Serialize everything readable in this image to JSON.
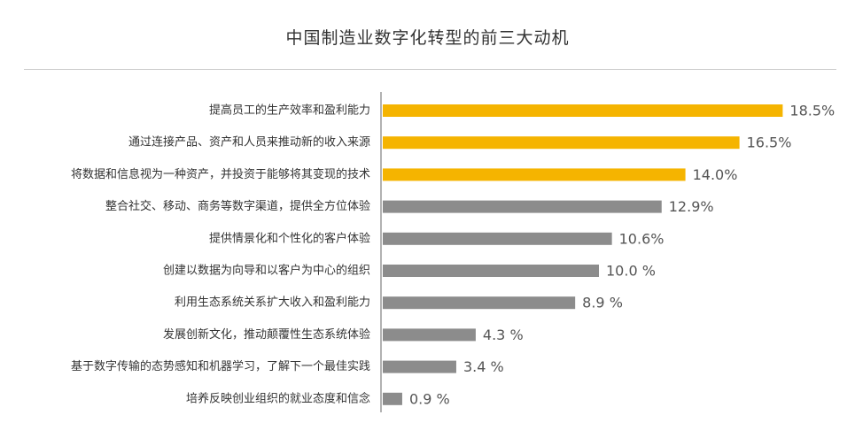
{
  "chart_data": {
    "type": "bar",
    "orientation": "horizontal",
    "title": "中国制造业数字化转型的前三大动机",
    "xlabel": "",
    "ylabel": "",
    "xlim": [
      0,
      20
    ],
    "grid": false,
    "legend": "none",
    "colors": {
      "highlight": "#F5B400",
      "default": "#8C8C8C",
      "axis": "#999999"
    },
    "categories": [
      "提高员工的生产效率和盈利能力",
      "通过连接产品、资产和人员来推动新的收入来源",
      "将数据和信息视为一种资产，并投资于能够将其变现的技术",
      "整合社交、移动、商务等数字渠道，提供全方位体验",
      "提供情景化和个性化的客户体验",
      "创建以数据为向导和以客户为中心的组织",
      "利用生态系统关系扩大收入和盈利能力",
      "发展创新文化，推动颠覆性生态系统体验",
      "基于数字传输的态势感知和机器学习，了解下一个最佳实践",
      "培养反映创业组织的就业态度和信念"
    ],
    "values": [
      18.5,
      16.5,
      14.0,
      12.9,
      10.6,
      10.0,
      8.9,
      4.3,
      3.4,
      0.9
    ],
    "value_labels": [
      "18.5%",
      "16.5%",
      "14.0%",
      "12.9%",
      "10.6%",
      "10.0 %",
      "8.9 %",
      "4.3 %",
      "3.4 %",
      "0.9 %"
    ],
    "highlighted": [
      true,
      true,
      true,
      false,
      false,
      false,
      false,
      false,
      false,
      false
    ]
  }
}
